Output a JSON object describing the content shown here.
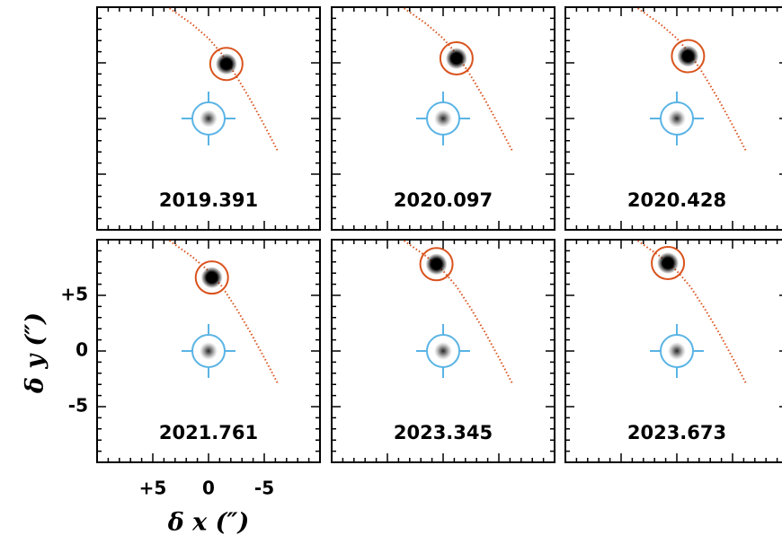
{
  "chart_data": {
    "type": "image-grid",
    "xlabel": "δ x  (″)",
    "ylabel": "δ y  (″)",
    "xlim": [
      10,
      -10
    ],
    "ylim": [
      -10,
      10
    ],
    "xticks": [
      {
        "value": 5,
        "label": "+5"
      },
      0,
      -5
    ],
    "yticks": [
      {
        "value": 5,
        "label": "+5"
      },
      0,
      -5
    ],
    "minor_ticks": [
      -9,
      -8,
      -7,
      -6,
      -4,
      -3,
      -2,
      -1,
      1,
      2,
      3,
      4,
      6,
      7,
      8,
      9
    ],
    "host": {
      "x": 0,
      "y": 0,
      "color": "#5ab4e5"
    },
    "companion_color": "#d9531e",
    "orbit": {
      "x": [
        3.5,
        1.5,
        0,
        -1.2,
        -2.5,
        -3.8,
        -5,
        -6.2
      ],
      "y": [
        9.9,
        8.5,
        7.2,
        5.8,
        3.8,
        1.6,
        -0.6,
        -2.9
      ]
    },
    "panels": [
      {
        "epoch": "2019.391",
        "companion_x": -1.6,
        "companion_y": 4.9
      },
      {
        "epoch": "2020.097",
        "companion_x": -1.2,
        "companion_y": 5.4
      },
      {
        "epoch": "2020.428",
        "companion_x": -1.0,
        "companion_y": 5.6
      },
      {
        "epoch": "2021.761",
        "companion_x": -0.3,
        "companion_y": 6.6
      },
      {
        "epoch": "2023.345",
        "companion_x": 0.6,
        "companion_y": 7.8
      },
      {
        "epoch": "2023.673",
        "companion_x": 0.8,
        "companion_y": 7.9
      }
    ]
  }
}
